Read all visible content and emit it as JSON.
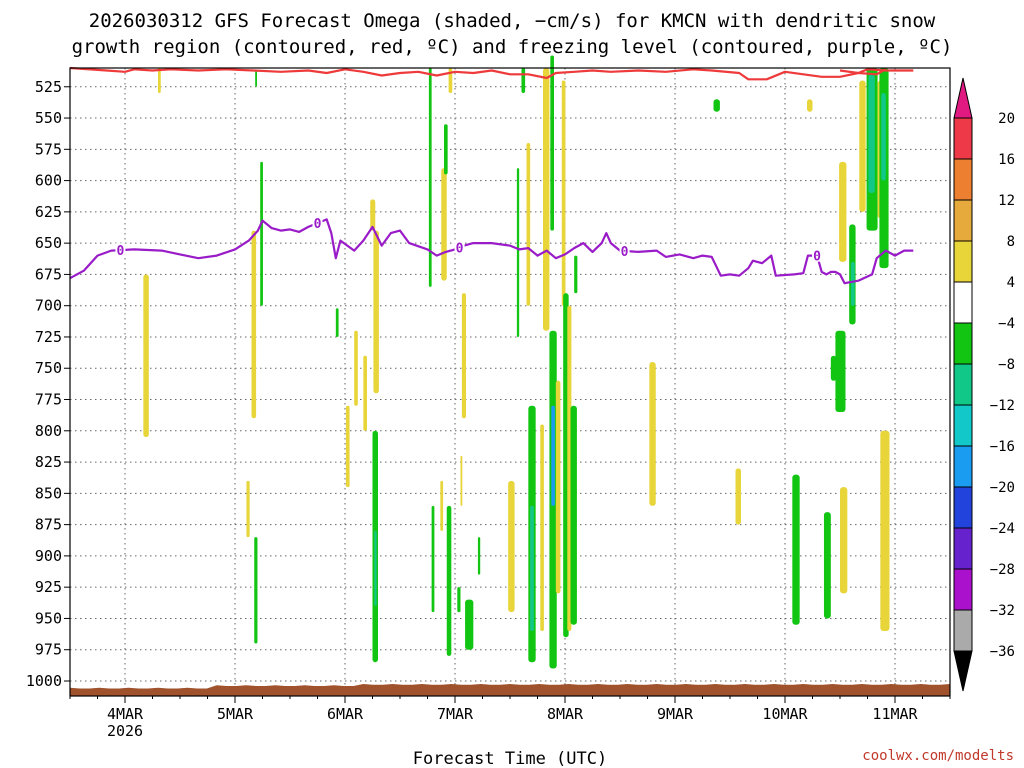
{
  "chart_data": {
    "type": "heatmap",
    "title_lines": [
      "2026030312 GFS Forecast Omega (shaded, −cm/s) for KMCN with dendritic snow",
      "growth region (contoured, red, ºC) and freezing level (contoured, purple, ºC)"
    ],
    "xlabel": "Forecast Time (UTC)",
    "credit": "coolwx.com/modelts",
    "x_range_hours": [
      0,
      192
    ],
    "x_ticks": [
      {
        "h": 12,
        "label": "4MAR",
        "sub": "2026"
      },
      {
        "h": 36,
        "label": "5MAR",
        "sub": ""
      },
      {
        "h": 60,
        "label": "6MAR",
        "sub": ""
      },
      {
        "h": 84,
        "label": "7MAR",
        "sub": ""
      },
      {
        "h": 108,
        "label": "8MAR",
        "sub": ""
      },
      {
        "h": 132,
        "label": "9MAR",
        "sub": ""
      },
      {
        "h": 156,
        "label": "10MAR",
        "sub": ""
      },
      {
        "h": 180,
        "label": "11MAR",
        "sub": ""
      }
    ],
    "y_range_hpa": [
      510,
      1012
    ],
    "y_ticks": [
      "525",
      "550",
      "575",
      "600",
      "625",
      "650",
      "675",
      "700",
      "725",
      "750",
      "775",
      "800",
      "825",
      "850",
      "875",
      "900",
      "925",
      "950",
      "975",
      "1000"
    ],
    "colorbar": {
      "labels": [
        "20",
        "16",
        "12",
        "8",
        "4",
        "−4",
        "−8",
        "−12",
        "−16",
        "−20",
        "−24",
        "−28",
        "−32",
        "−36"
      ],
      "colors": [
        "#ee3a48",
        "#ec7f30",
        "#e6a93c",
        "#e7d53a",
        "#ffffff",
        "#12c512",
        "#12c888",
        "#12c8c8",
        "#1a9cf0",
        "#2244dd",
        "#6622cc",
        "#aa11cc",
        "#aaaaaa"
      ],
      "top_arrow_color": "#e01a80",
      "bottom_arrow_color": "#000000"
    },
    "freezing_level": {
      "color": "#9a1bc8",
      "label": "0",
      "points": [
        [
          0,
          678
        ],
        [
          3,
          672
        ],
        [
          6,
          660
        ],
        [
          9,
          656
        ],
        [
          14,
          655
        ],
        [
          20,
          656
        ],
        [
          24,
          659
        ],
        [
          28,
          662
        ],
        [
          32,
          660
        ],
        [
          36,
          655
        ],
        [
          39,
          648
        ],
        [
          41,
          640
        ],
        [
          42,
          632
        ],
        [
          44,
          638
        ],
        [
          46,
          640
        ],
        [
          48,
          639
        ],
        [
          50,
          641
        ],
        [
          52,
          637
        ],
        [
          54,
          634
        ],
        [
          56,
          631
        ],
        [
          57,
          642
        ],
        [
          58,
          662
        ],
        [
          59,
          648
        ],
        [
          62,
          656
        ],
        [
          64,
          648
        ],
        [
          66,
          637
        ],
        [
          68,
          652
        ],
        [
          70,
          642
        ],
        [
          72,
          640
        ],
        [
          74,
          650
        ],
        [
          78,
          655
        ],
        [
          80,
          660
        ],
        [
          82,
          657
        ],
        [
          84,
          655
        ],
        [
          86,
          652
        ],
        [
          88,
          650
        ],
        [
          92,
          650
        ],
        [
          96,
          652
        ],
        [
          98,
          655
        ],
        [
          100,
          654
        ],
        [
          102,
          660
        ],
        [
          104,
          656
        ],
        [
          106,
          662
        ],
        [
          108,
          659
        ],
        [
          110,
          654
        ],
        [
          112,
          650
        ],
        [
          114,
          657
        ],
        [
          116,
          650
        ],
        [
          117,
          642
        ],
        [
          118,
          650
        ],
        [
          120,
          656
        ],
        [
          124,
          657
        ],
        [
          128,
          656
        ],
        [
          130,
          661
        ],
        [
          133,
          659
        ],
        [
          136,
          662
        ],
        [
          138,
          660
        ],
        [
          140,
          661
        ],
        [
          142,
          676
        ],
        [
          144,
          675
        ],
        [
          146,
          676
        ],
        [
          148,
          670
        ],
        [
          149,
          664
        ],
        [
          151,
          666
        ],
        [
          153,
          660
        ],
        [
          154,
          676
        ],
        [
          158,
          675
        ],
        [
          160,
          674
        ],
        [
          161,
          660
        ],
        [
          163,
          660
        ],
        [
          164,
          673
        ],
        [
          165,
          675
        ],
        [
          166,
          673
        ],
        [
          167,
          673
        ],
        [
          168,
          675
        ],
        [
          169,
          682
        ],
        [
          172,
          680
        ],
        [
          175,
          675
        ],
        [
          176,
          662
        ],
        [
          178,
          656
        ],
        [
          180,
          660
        ],
        [
          182,
          656
        ],
        [
          184,
          656
        ]
      ],
      "labels_at_hours": [
        11,
        54,
        85,
        121,
        163
      ]
    },
    "dendritic_growth_line": {
      "color": "#ee3a3a",
      "points": [
        [
          0,
          510
        ],
        [
          8,
          512
        ],
        [
          12,
          513
        ],
        [
          14,
          511
        ],
        [
          18,
          512
        ],
        [
          22,
          511
        ],
        [
          28,
          512
        ],
        [
          34,
          511
        ],
        [
          40,
          512
        ],
        [
          46,
          513
        ],
        [
          52,
          512
        ],
        [
          56,
          514
        ],
        [
          60,
          511
        ],
        [
          64,
          513
        ],
        [
          68,
          516
        ],
        [
          72,
          514
        ],
        [
          76,
          513
        ],
        [
          80,
          516
        ],
        [
          84,
          513
        ],
        [
          88,
          514
        ],
        [
          92,
          512
        ],
        [
          96,
          515
        ],
        [
          100,
          515
        ],
        [
          104,
          518
        ],
        [
          106,
          514
        ],
        [
          110,
          513
        ],
        [
          114,
          512
        ],
        [
          118,
          513
        ],
        [
          124,
          512
        ],
        [
          130,
          513
        ],
        [
          136,
          511
        ],
        [
          140,
          512
        ],
        [
          146,
          514
        ],
        [
          148,
          519
        ],
        [
          152,
          519
        ],
        [
          156,
          513
        ],
        [
          160,
          515
        ],
        [
          164,
          517
        ],
        [
          168,
          517
        ],
        [
          172,
          514
        ],
        [
          174,
          511
        ],
        [
          178,
          512
        ],
        [
          184,
          512
        ]
      ],
      "extra_segment": [
        [
          168,
          512
        ],
        [
          172,
          514
        ],
        [
          176,
          515
        ],
        [
          178,
          511
        ]
      ]
    },
    "omega_cells": [
      {
        "h0": 16.0,
        "h1": 17.2,
        "p0": 675,
        "p1": 805,
        "c": "#e7d53a"
      },
      {
        "h0": 19.2,
        "h1": 19.8,
        "p0": 510,
        "p1": 530,
        "c": "#e7d53a"
      },
      {
        "h0": 38.5,
        "h1": 39.2,
        "p0": 840,
        "p1": 885,
        "c": "#e7d53a"
      },
      {
        "h0": 39.6,
        "h1": 40.6,
        "p0": 640,
        "p1": 790,
        "c": "#e7d53a"
      },
      {
        "h0": 40.2,
        "h1": 40.9,
        "p0": 885,
        "p1": 970,
        "c": "#12c512"
      },
      {
        "h0": 41.5,
        "h1": 42.1,
        "p0": 585,
        "p1": 700,
        "c": "#12c512"
      },
      {
        "h0": 40.4,
        "h1": 40.8,
        "p0": 512,
        "p1": 525,
        "c": "#12c512"
      },
      {
        "h0": 58.0,
        "h1": 58.6,
        "p0": 702,
        "p1": 725,
        "c": "#12c512"
      },
      {
        "h0": 60.2,
        "h1": 61.0,
        "p0": 780,
        "p1": 845,
        "c": "#e7d53a"
      },
      {
        "h0": 62.0,
        "h1": 62.8,
        "p0": 720,
        "p1": 780,
        "c": "#e7d53a"
      },
      {
        "h0": 64.0,
        "h1": 64.8,
        "p0": 740,
        "p1": 800,
        "c": "#e7d53a"
      },
      {
        "h0": 65.5,
        "h1": 66.6,
        "p0": 615,
        "p1": 640,
        "c": "#e7d53a"
      },
      {
        "h0": 66.2,
        "h1": 67.4,
        "p0": 640,
        "p1": 770,
        "c": "#e7d53a"
      },
      {
        "h0": 66.0,
        "h1": 67.2,
        "p0": 800,
        "p1": 985,
        "c": "#12c512"
      },
      {
        "h0": 66.4,
        "h1": 66.9,
        "p0": 880,
        "p1": 940,
        "c": "#12c888"
      },
      {
        "h0": 78.3,
        "h1": 78.9,
        "p0": 510,
        "p1": 685,
        "c": "#12c512"
      },
      {
        "h0": 78.9,
        "h1": 79.5,
        "p0": 860,
        "p1": 945,
        "c": "#12c512"
      },
      {
        "h0": 80.8,
        "h1": 81.4,
        "p0": 840,
        "p1": 880,
        "c": "#e7d53a"
      },
      {
        "h0": 81.0,
        "h1": 82.2,
        "p0": 590,
        "p1": 680,
        "c": "#e7d53a"
      },
      {
        "h0": 81.6,
        "h1": 82.4,
        "p0": 555,
        "p1": 595,
        "c": "#12c512"
      },
      {
        "h0": 82.2,
        "h1": 83.2,
        "p0": 860,
        "p1": 980,
        "c": "#12c512"
      },
      {
        "h0": 82.6,
        "h1": 83.4,
        "p0": 510,
        "p1": 530,
        "c": "#e7d53a"
      },
      {
        "h0": 84.5,
        "h1": 85.2,
        "p0": 925,
        "p1": 945,
        "c": "#12c512"
      },
      {
        "h0": 85.2,
        "h1": 85.6,
        "p0": 820,
        "p1": 860,
        "c": "#e7d53a"
      },
      {
        "h0": 85.5,
        "h1": 86.4,
        "p0": 690,
        "p1": 790,
        "c": "#e7d53a"
      },
      {
        "h0": 86.2,
        "h1": 88.0,
        "p0": 935,
        "p1": 975,
        "c": "#12c512"
      },
      {
        "h0": 89.0,
        "h1": 89.5,
        "p0": 885,
        "p1": 915,
        "c": "#12c512"
      },
      {
        "h0": 95.6,
        "h1": 97.0,
        "p0": 840,
        "p1": 945,
        "c": "#e7d53a"
      },
      {
        "h0": 97.5,
        "h1": 98.0,
        "p0": 590,
        "p1": 725,
        "c": "#12c512"
      },
      {
        "h0": 98.5,
        "h1": 99.3,
        "p0": 510,
        "p1": 530,
        "c": "#12c512"
      },
      {
        "h0": 99.6,
        "h1": 100.4,
        "p0": 570,
        "p1": 700,
        "c": "#e7d53a"
      },
      {
        "h0": 100.0,
        "h1": 101.6,
        "p0": 780,
        "p1": 985,
        "c": "#12c512"
      },
      {
        "h0": 100.4,
        "h1": 101.2,
        "p0": 860,
        "p1": 960,
        "c": "#12c888"
      },
      {
        "h0": 102.6,
        "h1": 103.4,
        "p0": 795,
        "p1": 960,
        "c": "#e7d53a"
      },
      {
        "h0": 103.2,
        "h1": 104.6,
        "p0": 510,
        "p1": 720,
        "c": "#e7d53a"
      },
      {
        "h0": 104.6,
        "h1": 106.2,
        "p0": 720,
        "p1": 990,
        "c": "#12c512"
      },
      {
        "h0": 104.8,
        "h1": 105.6,
        "p0": 500,
        "p1": 640,
        "c": "#12c512"
      },
      {
        "h0": 105.0,
        "h1": 105.8,
        "p0": 780,
        "p1": 860,
        "c": "#1a9cf0"
      },
      {
        "h0": 106.0,
        "h1": 107.0,
        "p0": 760,
        "p1": 930,
        "c": "#e7d53a"
      },
      {
        "h0": 107.3,
        "h1": 108.1,
        "p0": 520,
        "p1": 700,
        "c": "#e7d53a"
      },
      {
        "h0": 107.6,
        "h1": 108.8,
        "p0": 690,
        "p1": 965,
        "c": "#12c512"
      },
      {
        "h0": 108.5,
        "h1": 109.4,
        "p0": 700,
        "p1": 960,
        "c": "#e7d53a"
      },
      {
        "h0": 109.2,
        "h1": 110.6,
        "p0": 780,
        "p1": 955,
        "c": "#12c512"
      },
      {
        "h0": 110.0,
        "h1": 110.7,
        "p0": 660,
        "p1": 690,
        "c": "#12c512"
      },
      {
        "h0": 126.4,
        "h1": 127.8,
        "p0": 745,
        "p1": 860,
        "c": "#e7d53a"
      },
      {
        "h0": 140.4,
        "h1": 141.8,
        "p0": 535,
        "p1": 545,
        "c": "#12c512"
      },
      {
        "h0": 145.2,
        "h1": 146.4,
        "p0": 830,
        "p1": 875,
        "c": "#e7d53a"
      },
      {
        "h0": 157.6,
        "h1": 159.2,
        "p0": 835,
        "p1": 955,
        "c": "#12c512"
      },
      {
        "h0": 160.8,
        "h1": 162.0,
        "p0": 535,
        "p1": 545,
        "c": "#e7d53a"
      },
      {
        "h0": 164.5,
        "h1": 166.0,
        "p0": 865,
        "p1": 950,
        "c": "#12c512"
      },
      {
        "h0": 166.0,
        "h1": 167.2,
        "p0": 740,
        "p1": 760,
        "c": "#12c512"
      },
      {
        "h0": 167.0,
        "h1": 169.2,
        "p0": 720,
        "p1": 785,
        "c": "#12c512"
      },
      {
        "h0": 167.8,
        "h1": 169.4,
        "p0": 585,
        "p1": 665,
        "c": "#e7d53a"
      },
      {
        "h0": 168.0,
        "h1": 169.6,
        "p0": 845,
        "p1": 930,
        "c": "#e7d53a"
      },
      {
        "h0": 170.0,
        "h1": 171.4,
        "p0": 635,
        "p1": 715,
        "c": "#12c512"
      },
      {
        "h0": 170.4,
        "h1": 171.2,
        "p0": 665,
        "p1": 700,
        "c": "#12c888"
      },
      {
        "h0": 172.2,
        "h1": 173.6,
        "p0": 520,
        "p1": 625,
        "c": "#e7d53a"
      },
      {
        "h0": 173.8,
        "h1": 176.2,
        "p0": 510,
        "p1": 640,
        "c": "#12c512"
      },
      {
        "h0": 174.2,
        "h1": 175.6,
        "p0": 515,
        "p1": 610,
        "c": "#12c888"
      },
      {
        "h0": 176.2,
        "h1": 177.4,
        "p0": 520,
        "p1": 630,
        "c": "#e7d53a"
      },
      {
        "h0": 176.6,
        "h1": 178.6,
        "p0": 510,
        "p1": 670,
        "c": "#12c512"
      },
      {
        "h0": 177.0,
        "h1": 178.0,
        "p0": 530,
        "p1": 600,
        "c": "#12c888"
      },
      {
        "h0": 176.8,
        "h1": 178.8,
        "p0": 800,
        "p1": 960,
        "c": "#e7d53a"
      }
    ],
    "ground_color": "#a0522d"
  }
}
